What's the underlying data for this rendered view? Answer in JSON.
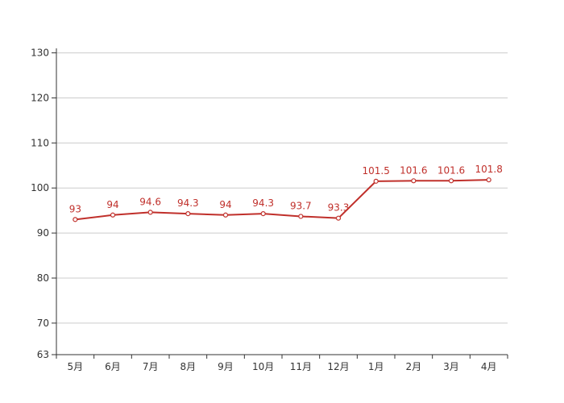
{
  "chart_data": {
    "type": "line",
    "categories": [
      "5月",
      "6月",
      "7月",
      "8月",
      "9月",
      "10月",
      "11月",
      "12月",
      "1月",
      "2月",
      "3月",
      "4月"
    ],
    "series": [
      {
        "values": [
          93,
          94,
          94.6,
          94.3,
          94,
          94.3,
          93.7,
          93.3,
          101.5,
          101.6,
          101.6,
          101.8
        ],
        "color": "#c0302b"
      }
    ],
    "data_labels": [
      "93",
      "94",
      "94.6",
      "94.3",
      "94",
      "94.3",
      "93.7",
      "93.3",
      "101.5",
      "101.6",
      "101.6",
      "101.8"
    ],
    "y_ticks": [
      "63",
      "70",
      "80",
      "90",
      "100",
      "110",
      "120",
      "130"
    ],
    "ylim": [
      63,
      131
    ],
    "grid": true,
    "title": "",
    "xlabel": "",
    "ylabel": "",
    "colors": {
      "line": "#c0302b",
      "label": "#c0302b",
      "grid": "#cccccc",
      "axis": "#333333"
    }
  }
}
